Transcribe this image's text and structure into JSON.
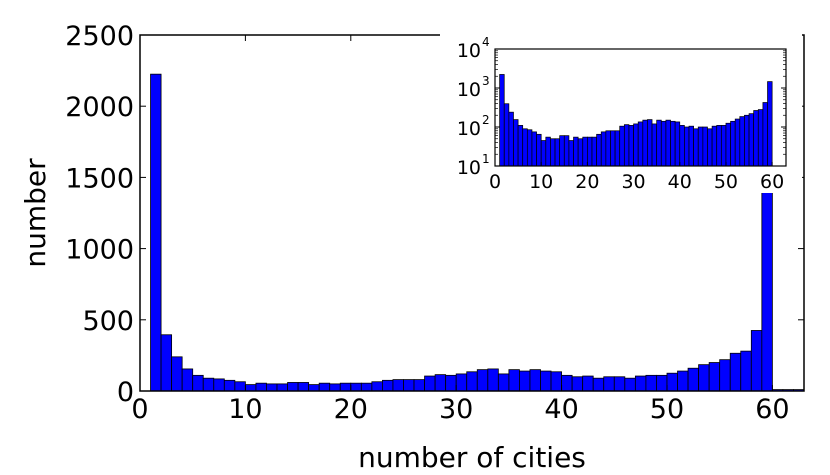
{
  "chart_data": [
    {
      "type": "bar",
      "xlabel": "number of cities",
      "ylabel": "number",
      "xlim": [
        0,
        63
      ],
      "ylim": [
        0,
        2500
      ],
      "xticks": [
        "0",
        "10",
        "20",
        "30",
        "40",
        "50",
        "60"
      ],
      "yticks": [
        "0",
        "500",
        "1000",
        "1500",
        "2000",
        "2500"
      ],
      "bar_color": "#0000ff",
      "edge_color": "#000000",
      "x": [
        1,
        2,
        3,
        4,
        5,
        6,
        7,
        8,
        9,
        10,
        11,
        12,
        13,
        14,
        15,
        16,
        17,
        18,
        19,
        20,
        21,
        22,
        23,
        24,
        25,
        26,
        27,
        28,
        29,
        30,
        31,
        32,
        33,
        34,
        35,
        36,
        37,
        38,
        39,
        40,
        41,
        42,
        43,
        44,
        45,
        46,
        47,
        48,
        49,
        50,
        51,
        52,
        53,
        54,
        55,
        56,
        57,
        58,
        59,
        60,
        61,
        62
      ],
      "values": [
        2225,
        395,
        240,
        155,
        110,
        90,
        85,
        75,
        65,
        45,
        55,
        50,
        50,
        60,
        60,
        45,
        55,
        50,
        55,
        55,
        55,
        65,
        75,
        80,
        80,
        80,
        105,
        115,
        110,
        120,
        135,
        150,
        155,
        120,
        150,
        140,
        150,
        140,
        135,
        110,
        100,
        105,
        90,
        100,
        100,
        90,
        105,
        110,
        110,
        125,
        140,
        160,
        185,
        200,
        220,
        265,
        280,
        425,
        1460,
        10,
        10,
        10
      ]
    },
    {
      "type": "bar",
      "scale": "log",
      "xlim": [
        0,
        63
      ],
      "ylim": [
        10,
        10000
      ],
      "xticks": [
        "0",
        "10",
        "20",
        "30",
        "40",
        "50",
        "60"
      ],
      "yticks": [
        "10",
        "10",
        "10",
        "10"
      ],
      "ytick_exponents": [
        "1",
        "2",
        "3",
        "4"
      ],
      "bar_color": "#0000ff",
      "edge_color": "#000000",
      "x": [
        1,
        2,
        3,
        4,
        5,
        6,
        7,
        8,
        9,
        10,
        11,
        12,
        13,
        14,
        15,
        16,
        17,
        18,
        19,
        20,
        21,
        22,
        23,
        24,
        25,
        26,
        27,
        28,
        29,
        30,
        31,
        32,
        33,
        34,
        35,
        36,
        37,
        38,
        39,
        40,
        41,
        42,
        43,
        44,
        45,
        46,
        47,
        48,
        49,
        50,
        51,
        52,
        53,
        54,
        55,
        56,
        57,
        58,
        59,
        60,
        61,
        62
      ],
      "values": [
        2225,
        395,
        240,
        155,
        110,
        90,
        85,
        75,
        65,
        45,
        55,
        50,
        50,
        60,
        60,
        45,
        55,
        50,
        55,
        55,
        55,
        65,
        75,
        80,
        80,
        80,
        105,
        115,
        110,
        120,
        135,
        150,
        155,
        120,
        150,
        140,
        150,
        140,
        135,
        110,
        100,
        105,
        90,
        100,
        100,
        90,
        105,
        110,
        110,
        125,
        140,
        160,
        185,
        200,
        220,
        265,
        280,
        425,
        1460,
        10,
        10,
        10
      ]
    }
  ]
}
